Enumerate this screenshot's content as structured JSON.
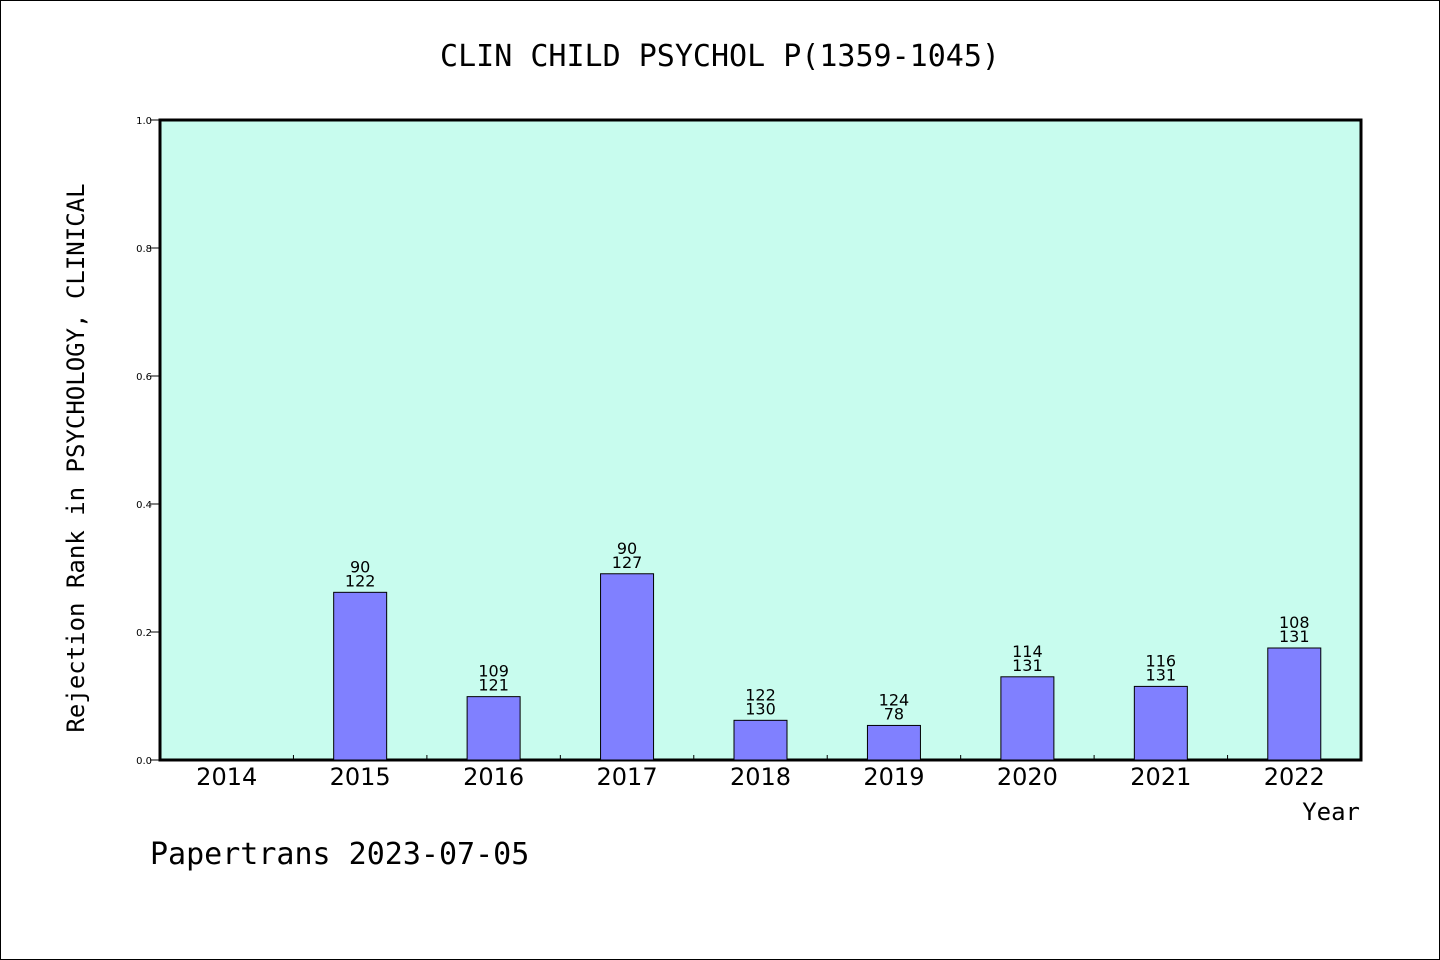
{
  "chart_data": {
    "type": "bar",
    "title": "CLIN CHILD PSYCHOL P(1359-1045)",
    "xlabel": "Year",
    "ylabel": "Rejection Rank in PSYCHOLOGY, CLINICAL",
    "ylim": [
      0,
      1.0
    ],
    "yticks": [
      "0.0",
      "0.2",
      "0.4",
      "0.6",
      "0.8",
      "1.0"
    ],
    "categories": [
      "2014",
      "2015",
      "2016",
      "2017",
      "2018",
      "2019",
      "2020",
      "2021",
      "2022"
    ],
    "values": [
      0,
      0.262,
      0.099,
      0.291,
      0.062,
      0.054,
      0.13,
      0.115,
      0.175
    ],
    "labels_top": [
      "",
      "90",
      "109",
      "90",
      "122",
      "124",
      "114",
      "116",
      "108"
    ],
    "labels_bottom": [
      "",
      "122",
      "121",
      "127",
      "130",
      "78",
      "131",
      "131",
      "131"
    ],
    "grid": false,
    "colors": {
      "plot_background": "#c8fcee",
      "bar_fill": "#8080ff",
      "bar_stroke": "#000000"
    }
  },
  "footer": "Papertrans 2023-07-05"
}
